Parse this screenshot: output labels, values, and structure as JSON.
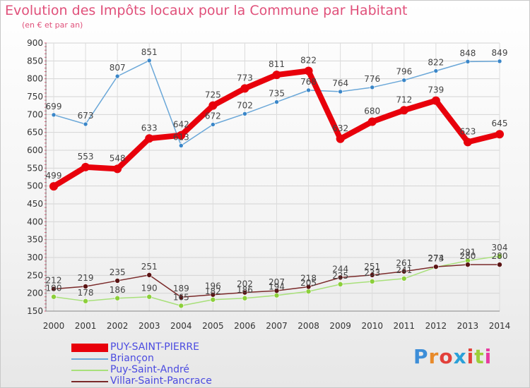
{
  "title": "Evolution des Impôts locaux pour la Commune par Habitant",
  "subtitle": "(en € et par an)",
  "logo": {
    "text": "Proxiti",
    "colors": [
      "#3d8ed8",
      "#e88a2a",
      "#e2403a",
      "#2aa0d8",
      "#e2403a",
      "#9ccf3a",
      "#e83aa0"
    ]
  },
  "chart_data": {
    "type": "line",
    "title": "Evolution des Impôts locaux pour la Commune par Habitant",
    "ylabel": "(en € et par an)",
    "xlabel": "",
    "ylim": [
      150,
      900
    ],
    "yticks": [
      150,
      200,
      250,
      300,
      350,
      400,
      450,
      500,
      550,
      600,
      650,
      700,
      750,
      800,
      850,
      900
    ],
    "x": [
      "2000",
      "2001",
      "2002",
      "2003",
      "2004",
      "2005",
      "2006",
      "2007",
      "2008",
      "2009",
      "2010",
      "2011",
      "2012",
      "2013",
      "2014"
    ],
    "grid": true,
    "series": [
      {
        "name": "PUY-SAINT-PIERRE",
        "color": "#e8000b",
        "marker": "#e8000b",
        "values": [
          499,
          553,
          548,
          633,
          642,
          725,
          773,
          811,
          822,
          632,
          680,
          712,
          739,
          623,
          645
        ],
        "labels": [
          "499",
          "553",
          "548",
          "633",
          "642",
          "725",
          "773",
          "811",
          "822",
          "632",
          "680",
          "712",
          "739",
          "623",
          "645"
        ]
      },
      {
        "name": "Briançon",
        "color": "#6aa7d8",
        "marker": "#3a86c8",
        "values": [
          699,
          673,
          807,
          851,
          613,
          672,
          702,
          735,
          768,
          764,
          776,
          796,
          822,
          848,
          849
        ],
        "labels": [
          "699",
          "673",
          "807",
          "851",
          "613",
          "672",
          "702",
          "735",
          "768",
          "764",
          "776",
          "796",
          "822",
          "848",
          "849"
        ]
      },
      {
        "name": "Puy-Saint-André",
        "color": "#a8e07a",
        "marker": "#8ccf3a",
        "values": [
          190,
          178,
          186,
          190,
          165,
          182,
          186,
          194,
          205,
          225,
          233,
          241,
          273,
          291,
          304
        ],
        "labels": [
          "190",
          "178",
          "186",
          "190",
          "165",
          "182",
          "186",
          "194",
          "205",
          "225",
          "233",
          "241",
          "273",
          "291",
          "304"
        ]
      },
      {
        "name": "Villar-Saint-Pancrace",
        "color": "#7a2a2a",
        "marker": "#5a1414",
        "values": [
          212,
          219,
          235,
          251,
          189,
          196,
          202,
          207,
          218,
          244,
          251,
          261,
          274,
          280,
          280
        ],
        "labels": [
          "212",
          "219",
          "235",
          "251",
          "189",
          "196",
          "202",
          "207",
          "218",
          "244",
          "251",
          "261",
          "274",
          "280",
          "280"
        ]
      }
    ]
  }
}
